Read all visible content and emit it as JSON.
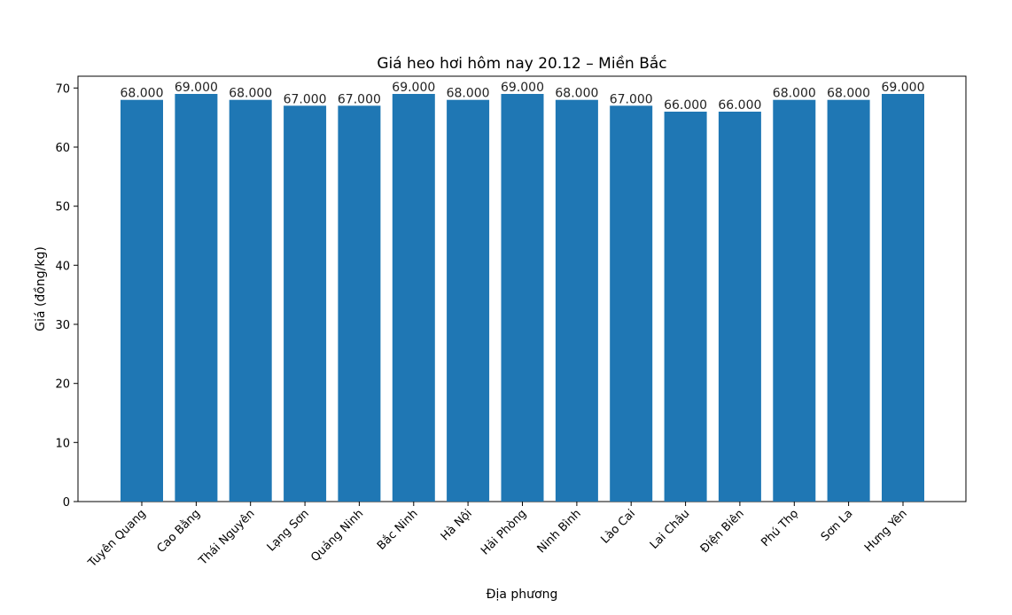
{
  "chart_data": {
    "type": "bar",
    "title": "Giá heo hơi hôm nay 20.12 – Miền Bắc",
    "xlabel": "Địa phương",
    "ylabel": "Giá (đồng/kg)",
    "ylim": [
      0,
      72
    ],
    "yticks": [
      0,
      10,
      20,
      30,
      40,
      50,
      60,
      70
    ],
    "grid": false,
    "bar_color": "#1f77b4",
    "categories": [
      "Tuyên Quang",
      "Cao Bằng",
      "Thái Nguyên",
      "Lạng Sơn",
      "Quảng Ninh",
      "Bắc Ninh",
      "Hà Nội",
      "Hải Phòng",
      "Ninh Bình",
      "Lào Cai",
      "Lai Châu",
      "Điện Biên",
      "Phú Thọ",
      "Sơn La",
      "Hưng Yên"
    ],
    "values": [
      68,
      69,
      68,
      67,
      67,
      69,
      68,
      69,
      68,
      67,
      66,
      66,
      68,
      68,
      69
    ],
    "data_labels": [
      "68.000",
      "69.000",
      "68.000",
      "67.000",
      "67.000",
      "69.000",
      "68.000",
      "69.000",
      "68.000",
      "67.000",
      "66.000",
      "66.000",
      "68.000",
      "68.000",
      "69.000"
    ]
  }
}
